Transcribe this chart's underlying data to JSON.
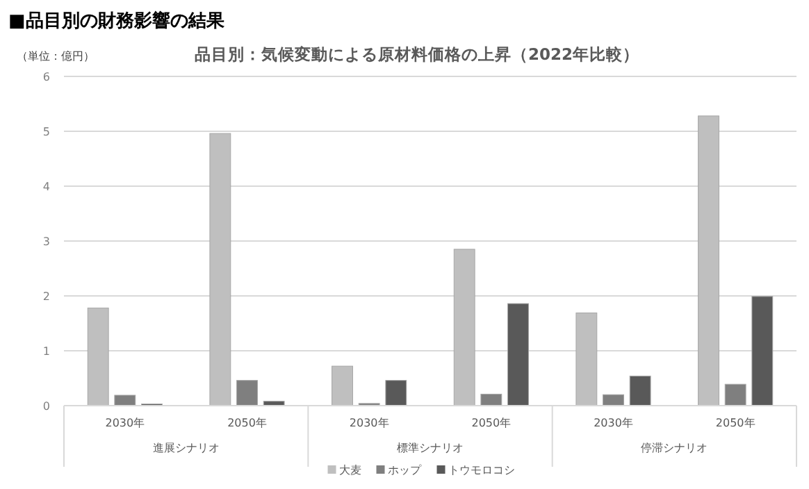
{
  "chart_data": {
    "type": "bar",
    "title": "■品目別の財務影響の結果",
    "subtitle": "品目別：気候変動による原材料価格の上昇（2022年比較）",
    "ylabel": "（単位：億円）",
    "categories": [
      "2030年",
      "2050年",
      "2030年",
      "2050年",
      "2030年",
      "2050年"
    ],
    "annotations": [
      "進展シナリオ",
      "標準シナリオ",
      "停滞シナリオ"
    ],
    "series": [
      {
        "name": "大麦",
        "color": "#bfbfbf",
        "values": [
          1.78,
          4.96,
          0.72,
          2.85,
          1.69,
          5.28
        ]
      },
      {
        "name": "ホップ",
        "color": "#7f7f7f",
        "values": [
          0.19,
          0.46,
          0.04,
          0.21,
          0.2,
          0.39
        ]
      },
      {
        "name": "トウモロコシ",
        "color": "#595959",
        "values": [
          0.03,
          0.08,
          0.46,
          1.86,
          0.54,
          1.99
        ]
      }
    ],
    "ylim": [
      0,
      6
    ],
    "yticks": [
      0,
      1,
      2,
      3,
      4,
      5,
      6
    ],
    "grid": "y",
    "legend": "bottom"
  }
}
